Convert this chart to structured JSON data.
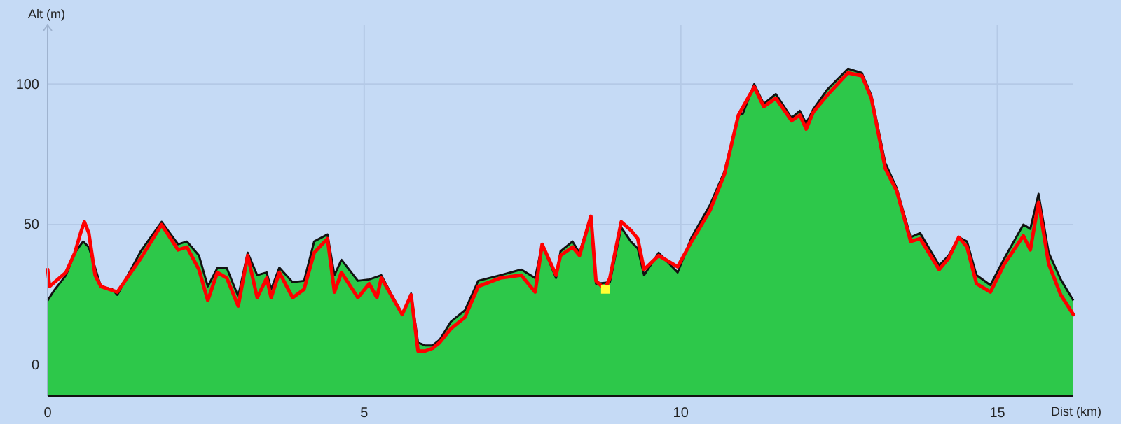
{
  "chart_data": {
    "type": "line",
    "xlabel": "Dist (km)",
    "ylabel": "Alt (m)",
    "xlim": [
      0,
      16.2
    ],
    "ylim": [
      -11,
      121
    ],
    "xticks": [
      0,
      5,
      10,
      15
    ],
    "yticks": [
      0,
      50,
      100
    ],
    "grid": true,
    "legend": false,
    "series": [
      {
        "type": "area",
        "color": "#2dc84a",
        "x": [
          0,
          0.1,
          0.29,
          0.43,
          0.56,
          0.65,
          0.84,
          1.02,
          1.1,
          1.47,
          1.8,
          2.06,
          2.2,
          2.39,
          2.53,
          2.68,
          2.83,
          3.01,
          3.16,
          3.31,
          3.46,
          3.53,
          3.66,
          3.87,
          4.05,
          4.21,
          4.42,
          4.53,
          4.64,
          4.9,
          5.08,
          5.27,
          5.6,
          5.74,
          5.85,
          5.96,
          6.08,
          6.19,
          6.37,
          6.59,
          6.8,
          7.15,
          7.48,
          7.7,
          7.81,
          8.03,
          8.1,
          8.29,
          8.4,
          8.58,
          8.66,
          8.88,
          9.06,
          9.21,
          9.32,
          9.42,
          9.65,
          9.95,
          10.17,
          10.46,
          10.69,
          10.91,
          10.98,
          11.16,
          11.31,
          11.5,
          11.75,
          11.88,
          11.98,
          12.09,
          12.31,
          12.64,
          12.86,
          13.01,
          13.23,
          13.41,
          13.63,
          13.78,
          14.08,
          14.23,
          14.39,
          14.52,
          14.67,
          14.89,
          15.11,
          15.41,
          15.52,
          15.65,
          15.81,
          16.0,
          16.2
        ],
        "values": [
          23,
          26.5,
          32,
          40,
          44,
          42,
          28,
          27,
          25,
          40.5,
          51,
          43,
          44,
          39,
          28,
          34.5,
          34.5,
          24.5,
          40,
          32,
          33,
          27,
          34.7,
          29.5,
          30,
          44,
          46.5,
          32,
          37.5,
          30,
          30.5,
          32,
          18,
          25.5,
          8,
          7,
          7,
          9,
          15.5,
          19.5,
          30,
          32,
          34,
          31,
          43,
          31,
          40.5,
          44,
          40,
          53,
          29,
          29.5,
          49,
          44,
          41.5,
          32,
          40,
          33,
          45.5,
          57,
          69,
          89,
          89.5,
          100,
          93,
          96.5,
          88,
          90.5,
          86,
          91,
          98,
          105.5,
          104,
          96,
          72,
          63,
          45.5,
          47,
          35.5,
          39,
          45.5,
          44,
          32,
          28.5,
          38,
          50,
          48.5,
          61,
          40,
          30.5,
          23
        ]
      },
      {
        "color": "#ff0000",
        "marker": "none",
        "line_style": "solid",
        "x": [
          0,
          0.03,
          0.29,
          0.43,
          0.52,
          0.58,
          0.65,
          0.75,
          0.84,
          1.1,
          1.47,
          1.8,
          2.06,
          2.2,
          2.39,
          2.53,
          2.68,
          2.83,
          3.01,
          3.16,
          3.31,
          3.46,
          3.53,
          3.66,
          3.87,
          4.05,
          4.21,
          4.42,
          4.53,
          4.64,
          4.9,
          5.08,
          5.2,
          5.27,
          5.6,
          5.74,
          5.85,
          5.96,
          6.08,
          6.19,
          6.37,
          6.59,
          6.8,
          7.15,
          7.48,
          7.7,
          7.81,
          8.03,
          8.1,
          8.29,
          8.4,
          8.58,
          8.66,
          8.8,
          8.88,
          9.06,
          9.21,
          9.32,
          9.42,
          9.65,
          9.95,
          10.17,
          10.46,
          10.69,
          10.91,
          11.16,
          11.31,
          11.5,
          11.75,
          11.88,
          11.98,
          12.09,
          12.31,
          12.64,
          12.86,
          13.01,
          13.23,
          13.41,
          13.63,
          13.78,
          14.08,
          14.23,
          14.39,
          14.52,
          14.67,
          14.89,
          15.11,
          15.41,
          15.52,
          15.65,
          15.81,
          16.0,
          16.2
        ],
        "values": [
          34,
          28,
          33,
          40,
          47,
          51,
          47,
          32,
          28,
          26,
          38,
          50,
          41,
          42,
          34,
          23,
          33,
          31,
          21,
          39,
          24,
          31,
          24,
          33,
          24,
          27,
          40,
          45,
          26,
          33,
          24,
          29,
          24,
          31,
          18,
          25,
          5,
          5,
          6,
          8,
          13,
          17,
          28,
          31,
          32,
          26,
          43,
          32,
          39,
          42,
          39,
          53,
          30,
          27,
          31,
          51,
          48,
          45,
          34,
          39,
          35,
          44,
          55,
          68,
          89,
          99,
          92,
          95,
          87,
          89,
          84,
          90,
          96,
          104,
          103,
          95,
          70,
          62,
          44,
          45,
          34,
          38,
          45.5,
          42,
          29,
          26,
          36,
          46,
          41,
          58,
          36,
          25,
          18
        ]
      },
      {
        "type": "scatter",
        "color": "#ffff33",
        "marker": "square",
        "x": [
          8.81
        ],
        "values": [
          27
        ]
      }
    ]
  }
}
